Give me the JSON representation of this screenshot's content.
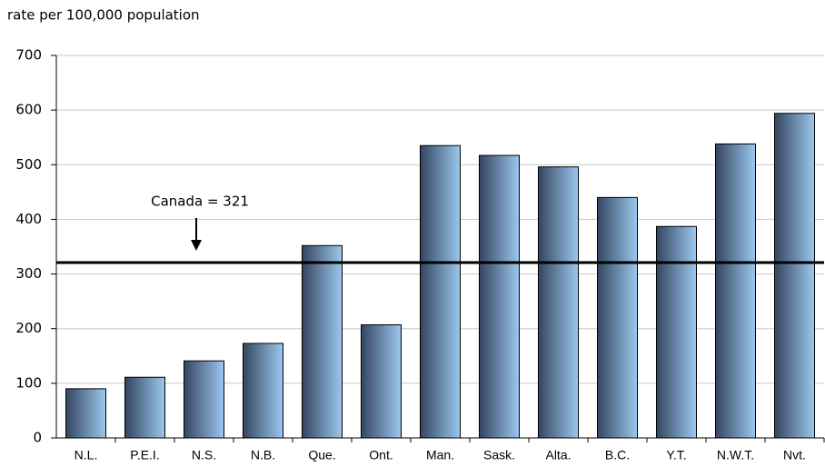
{
  "chart_data": {
    "type": "bar",
    "y_axis_label": "rate per 100,000 population",
    "categories": [
      "N.L.",
      "P.E.I.",
      "N.S.",
      "N.B.",
      "Que.",
      "Ont.",
      "Man.",
      "Sask.",
      "Alta.",
      "B.C.",
      "Y.T.",
      "N.W.T.",
      "Nvt."
    ],
    "values": [
      90,
      111,
      141,
      173,
      352,
      207,
      535,
      517,
      496,
      440,
      387,
      538,
      594
    ],
    "color": "#9cc8f0",
    "ylim": [
      0,
      700
    ],
    "yticks": [
      0,
      100,
      200,
      300,
      400,
      500,
      600,
      700
    ],
    "grid": true,
    "reference": {
      "value": 321,
      "label": "Canada = 321"
    }
  }
}
